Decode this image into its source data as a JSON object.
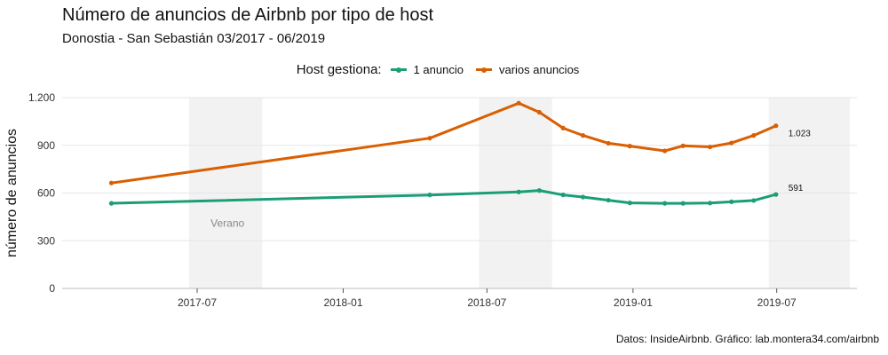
{
  "title": "Número de anuncios de Airbnb por tipo de host",
  "subtitle": "Donostia - San Sebastián 03/2017 - 06/2019",
  "caption": "Datos: InsideAirbnb. Gráfico: lab.montera34.com/airbnb",
  "legend": {
    "title": "Host gestiona:",
    "items": [
      {
        "label": "1 anuncio",
        "color": "#1b9e77"
      },
      {
        "label": "varios anuncios",
        "color": "#d95f02"
      }
    ]
  },
  "chart_data": {
    "type": "line",
    "xlabel": "",
    "ylabel": "número de anuncios",
    "ylim": [
      0,
      1200
    ],
    "xlim": [
      "2017-01-12",
      "2019-10-10"
    ],
    "y_ticks": [
      {
        "value": 0,
        "label": "0"
      },
      {
        "value": 300,
        "label": "300"
      },
      {
        "value": 600,
        "label": "600"
      },
      {
        "value": 900,
        "label": "900"
      },
      {
        "value": 1200,
        "label": "1.200"
      }
    ],
    "x_ticks": [
      {
        "date": "2017-07-01",
        "label": "2017-07"
      },
      {
        "date": "2018-01-01",
        "label": "2018-01"
      },
      {
        "date": "2018-07-01",
        "label": "2018-07"
      },
      {
        "date": "2019-01-01",
        "label": "2019-01"
      },
      {
        "date": "2019-07-01",
        "label": "2019-07"
      }
    ],
    "shaded_periods": [
      {
        "start": "2017-06-21",
        "end": "2017-09-21",
        "label": "Verano"
      },
      {
        "start": "2018-06-21",
        "end": "2018-09-21",
        "label": ""
      },
      {
        "start": "2019-06-21",
        "end": "2019-10-01",
        "label": ""
      }
    ],
    "series": [
      {
        "name": "1 anuncio",
        "color": "#1b9e77",
        "end_label": "591",
        "points": [
          {
            "x": "2017-03-15",
            "y": 535
          },
          {
            "x": "2018-04-20",
            "y": 588
          },
          {
            "x": "2018-08-10",
            "y": 607
          },
          {
            "x": "2018-09-05",
            "y": 616
          },
          {
            "x": "2018-10-05",
            "y": 588
          },
          {
            "x": "2018-10-30",
            "y": 575
          },
          {
            "x": "2018-12-01",
            "y": 555
          },
          {
            "x": "2018-12-28",
            "y": 538
          },
          {
            "x": "2019-02-10",
            "y": 535
          },
          {
            "x": "2019-03-05",
            "y": 535
          },
          {
            "x": "2019-04-08",
            "y": 537
          },
          {
            "x": "2019-05-05",
            "y": 545
          },
          {
            "x": "2019-06-02",
            "y": 553
          },
          {
            "x": "2019-06-30",
            "y": 591
          }
        ]
      },
      {
        "name": "varios anuncios",
        "color": "#d95f02",
        "end_label": "1.023",
        "points": [
          {
            "x": "2017-03-15",
            "y": 663
          },
          {
            "x": "2018-04-20",
            "y": 945
          },
          {
            "x": "2018-08-10",
            "y": 1165
          },
          {
            "x": "2018-09-05",
            "y": 1108
          },
          {
            "x": "2018-10-05",
            "y": 1008
          },
          {
            "x": "2018-10-30",
            "y": 962
          },
          {
            "x": "2018-12-01",
            "y": 913
          },
          {
            "x": "2018-12-28",
            "y": 895
          },
          {
            "x": "2019-02-10",
            "y": 865
          },
          {
            "x": "2019-03-05",
            "y": 897
          },
          {
            "x": "2019-04-08",
            "y": 890
          },
          {
            "x": "2019-05-05",
            "y": 915
          },
          {
            "x": "2019-06-02",
            "y": 962
          },
          {
            "x": "2019-06-30",
            "y": 1023
          }
        ]
      }
    ]
  }
}
